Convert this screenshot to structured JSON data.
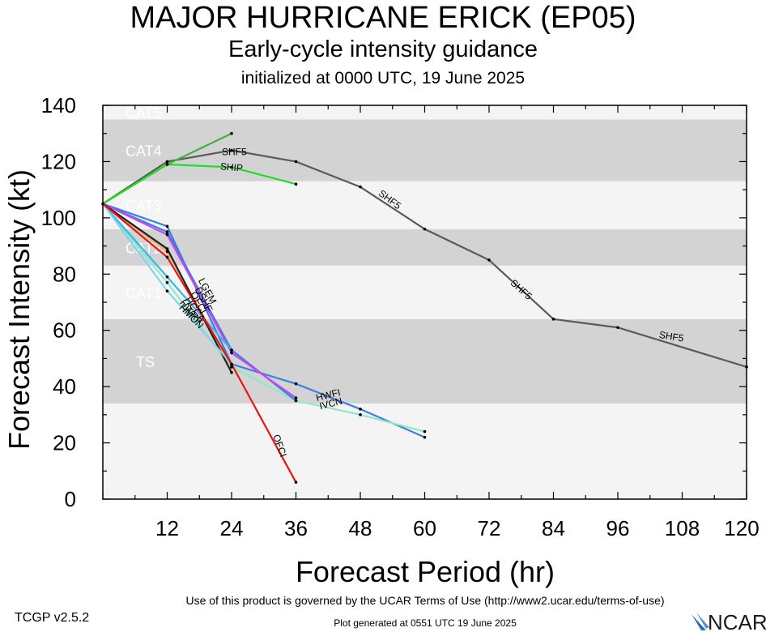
{
  "header": {
    "title": "MAJOR HURRICANE ERICK (EP05)",
    "subtitle": "Early-cycle intensity guidance",
    "init": "initialized at 0000 UTC, 19 June 2025"
  },
  "footer": {
    "terms": "Use of this product is governed by the UCAR Terms of Use (http://www2.ucar.edu/terms-of-use)",
    "version": "TCGP v2.5.2",
    "generated": "Plot generated at 0551 UTC   19 June 2025",
    "logo": "NCAR"
  },
  "chart_data": {
    "type": "line",
    "xlabel": "Forecast Period (hr)",
    "ylabel": "Forecast Intensity (kt)",
    "xlim": [
      0,
      120
    ],
    "ylim": [
      0,
      140
    ],
    "xticks": [
      12,
      24,
      36,
      48,
      60,
      72,
      84,
      96,
      108,
      120
    ],
    "yticks": [
      0,
      20,
      40,
      60,
      80,
      100,
      120,
      140
    ],
    "grid": false,
    "legend": "none",
    "bands": [
      {
        "label": "TS",
        "from": 34,
        "to": 64,
        "color": "#d3d3d3"
      },
      {
        "label": "CAT1",
        "from": 64,
        "to": 83,
        "color": "#f4f4f4"
      },
      {
        "label": "CAT2",
        "from": 83,
        "to": 96,
        "color": "#d3d3d3"
      },
      {
        "label": "CAT3",
        "from": 96,
        "to": 113,
        "color": "#f4f4f4"
      },
      {
        "label": "CAT4",
        "from": 113,
        "to": 135,
        "color": "#d3d3d3"
      },
      {
        "label": "CAT5",
        "from": 135,
        "to": 140,
        "color": "#f4f4f4"
      }
    ],
    "below_band_color": "#f4f4f4",
    "series": [
      {
        "name": "SHF5",
        "color": "#5a5a5a",
        "x": [
          0,
          12,
          24,
          36,
          48,
          60,
          72,
          84,
          96,
          120
        ],
        "y": [
          105,
          120,
          124,
          120,
          111,
          96,
          85,
          64,
          61,
          47
        ]
      },
      {
        "name": "",
        "color": "#3cb33c",
        "x": [
          0,
          12,
          24
        ],
        "y": [
          105,
          119,
          130
        ]
      },
      {
        "name": "SHIP",
        "color": "#22dd22",
        "x": [
          0,
          12,
          24,
          36
        ],
        "y": [
          105,
          119,
          118,
          112
        ]
      },
      {
        "name": "HWFI",
        "color": "#3d7fe0",
        "x": [
          0,
          12,
          24,
          36,
          48,
          60
        ],
        "y": [
          105,
          97,
          48,
          41,
          32,
          22
        ]
      },
      {
        "name": "IVCN",
        "color": "#8ee8c8",
        "x": [
          0,
          12,
          24,
          36,
          48,
          60
        ],
        "y": [
          105,
          77,
          47,
          35,
          30,
          24
        ]
      },
      {
        "name": "LGEM",
        "color": "#3d7fe0",
        "x": [
          0,
          12,
          24,
          36
        ],
        "y": [
          105,
          95,
          53,
          35
        ]
      },
      {
        "name": "",
        "color": "#cc44ee",
        "x": [
          0,
          12,
          24,
          36
        ],
        "y": [
          105,
          94,
          52,
          36
        ]
      },
      {
        "name": "",
        "color": "#e8b070",
        "x": [
          0,
          12,
          24
        ],
        "y": [
          105,
          88,
          47
        ]
      },
      {
        "name": "",
        "color": "#222222",
        "x": [
          0,
          12,
          24
        ],
        "y": [
          105,
          89,
          45
        ]
      },
      {
        "name": "",
        "color": "#33b8e8",
        "x": [
          0,
          12,
          24
        ],
        "y": [
          105,
          79,
          53
        ]
      },
      {
        "name": "",
        "color": "#7fd4f0",
        "x": [
          0,
          12,
          24
        ],
        "y": [
          105,
          74,
          48
        ]
      },
      {
        "name": "OFCI",
        "color": "#ee1111",
        "x": [
          0,
          12,
          24,
          36
        ],
        "y": [
          105,
          86,
          48,
          6
        ]
      }
    ],
    "line_labels": [
      {
        "text": "SHF5",
        "x": 24.5,
        "y": 123.5,
        "angle": 0
      },
      {
        "text": "SHIP",
        "x": 24,
        "y": 118,
        "angle": 5
      },
      {
        "text": "SHF5",
        "x": 53.5,
        "y": 106.5,
        "angle": 37
      },
      {
        "text": "SHF5",
        "x": 78,
        "y": 74.5,
        "angle": 42
      },
      {
        "text": "SHF5",
        "x": 106,
        "y": 57.8,
        "angle": 9
      },
      {
        "text": "LGEM",
        "x": 19.5,
        "y": 74,
        "angle": 62
      },
      {
        "text": "DSHF",
        "x": 18.8,
        "y": 71,
        "angle": 62
      },
      {
        "text": "OFCL",
        "x": 18,
        "y": 69.5,
        "angle": 60
      },
      {
        "text": "HCCA",
        "x": 17.2,
        "y": 67.5,
        "angle": 55
      },
      {
        "text": "HWRF",
        "x": 16.5,
        "y": 66.5,
        "angle": 50
      },
      {
        "text": "HMON",
        "x": 16.5,
        "y": 65,
        "angle": 45
      },
      {
        "text": "HWFI",
        "x": 42,
        "y": 37,
        "angle": -14
      },
      {
        "text": "IVCN",
        "x": 42.5,
        "y": 34,
        "angle": -14
      },
      {
        "text": "OFCI",
        "x": 33,
        "y": 19,
        "angle": 70
      }
    ]
  }
}
